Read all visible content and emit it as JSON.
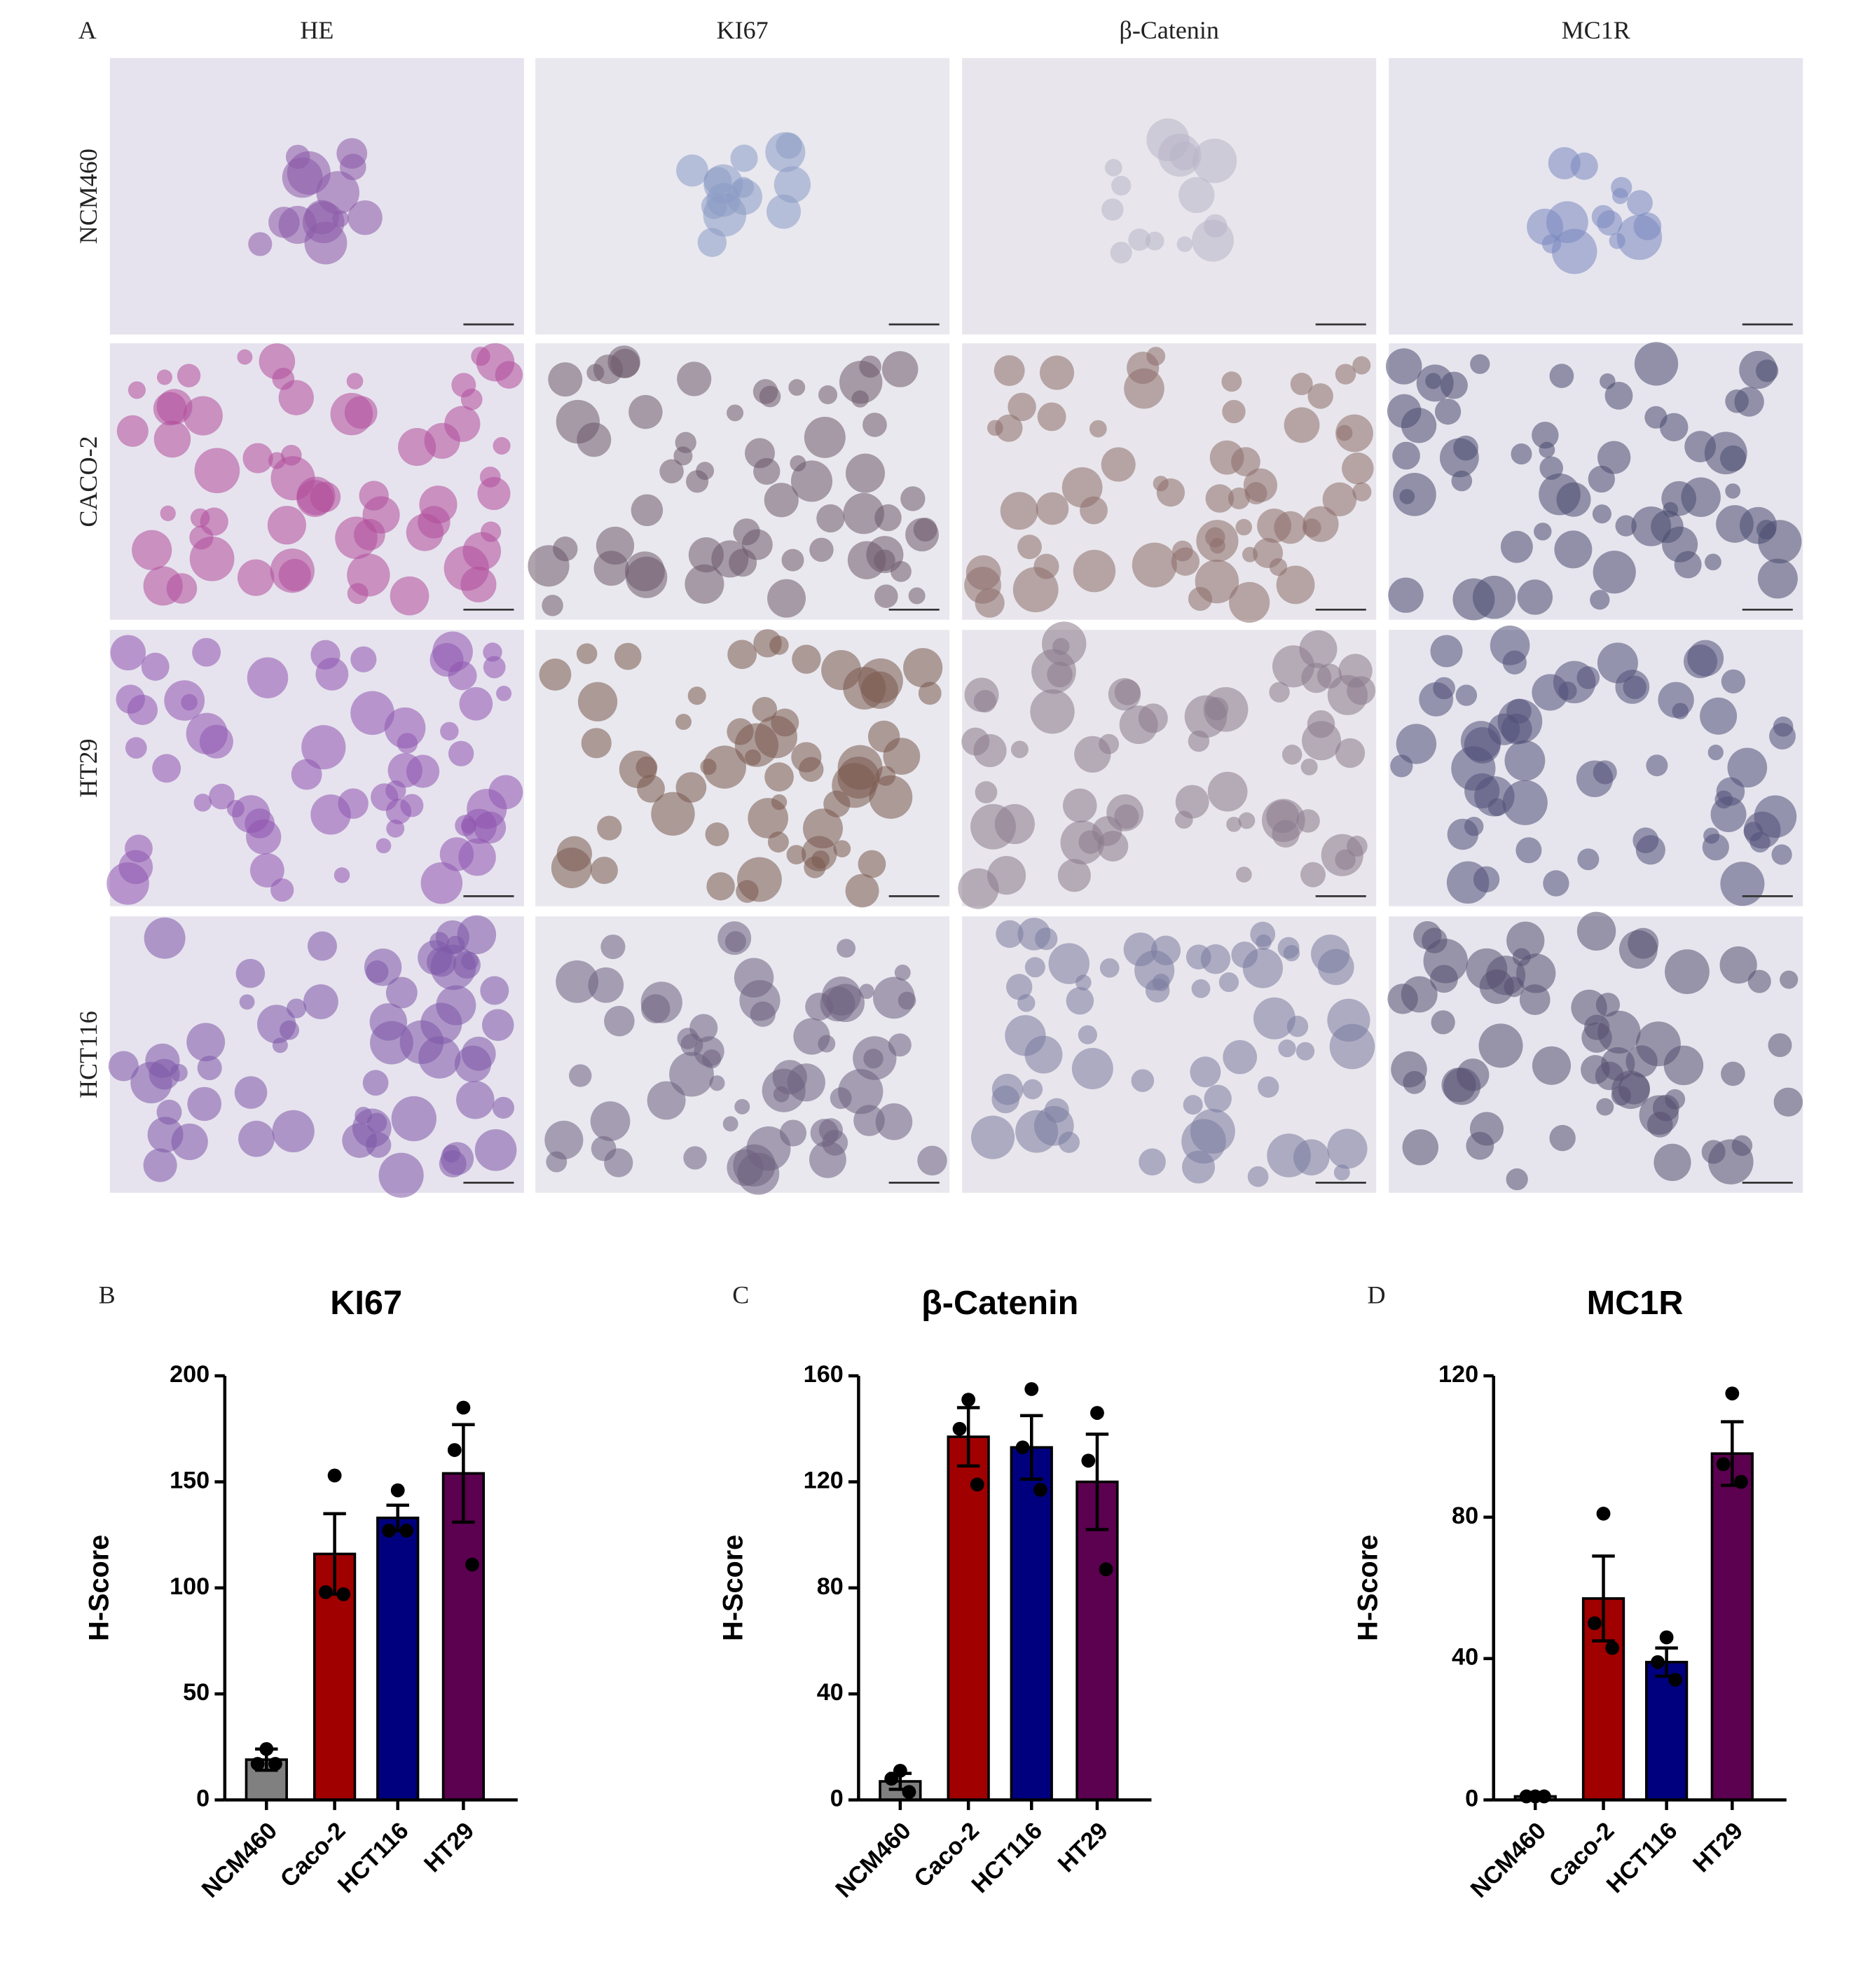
{
  "panel_a": {
    "label": "A",
    "columns": [
      "HE",
      "KI67",
      "β-Catenin",
      "MC1R"
    ],
    "rows": [
      "NCM460",
      "CACO-2",
      "HT29",
      "HCT116"
    ]
  },
  "chart_data": [
    {
      "type": "bar",
      "panel": "B",
      "title": "KI67",
      "ylabel": "H-Score",
      "categories": [
        "NCM460",
        "Caco-2",
        "HCT116",
        "HT29"
      ],
      "colors": [
        "#808080",
        "#a00000",
        "#00007f",
        "#5c0050"
      ],
      "values": [
        19,
        116,
        133,
        154
      ],
      "errors": [
        5,
        19,
        6,
        23
      ],
      "points": [
        [
          24,
          17,
          17
        ],
        [
          153,
          98,
          97
        ],
        [
          146,
          127,
          127
        ],
        [
          185,
          165,
          111
        ]
      ],
      "ylim": [
        0,
        200
      ],
      "yticks": [
        0,
        50,
        100,
        150,
        200
      ]
    },
    {
      "type": "bar",
      "panel": "C",
      "title": "β-Catenin",
      "ylabel": "H-Score",
      "categories": [
        "NCM460",
        "Caco-2",
        "HCT116",
        "HT29"
      ],
      "colors": [
        "#808080",
        "#a00000",
        "#00007f",
        "#5c0050"
      ],
      "values": [
        7,
        137,
        133,
        120
      ],
      "errors": [
        3,
        11,
        12,
        18
      ],
      "points": [
        [
          11,
          8,
          3
        ],
        [
          151,
          140,
          119
        ],
        [
          155,
          133,
          117
        ],
        [
          146,
          128,
          87
        ]
      ],
      "ylim": [
        0,
        160
      ],
      "yticks": [
        0,
        40,
        80,
        120,
        160
      ]
    },
    {
      "type": "bar",
      "panel": "D",
      "title": "MC1R",
      "ylabel": "H-Score",
      "categories": [
        "NCM460",
        "Caco-2",
        "HCT116",
        "HT29"
      ],
      "colors": [
        "#808080",
        "#a00000",
        "#00007f",
        "#5c0050"
      ],
      "values": [
        1,
        57,
        39,
        98
      ],
      "errors": [
        0.3,
        12,
        4,
        9
      ],
      "points": [
        [
          1,
          1,
          1
        ],
        [
          81,
          50,
          43
        ],
        [
          46,
          39,
          34
        ],
        [
          115,
          95,
          90
        ]
      ],
      "ylim": [
        0,
        120
      ],
      "yticks": [
        0,
        40,
        80,
        120
      ]
    }
  ]
}
